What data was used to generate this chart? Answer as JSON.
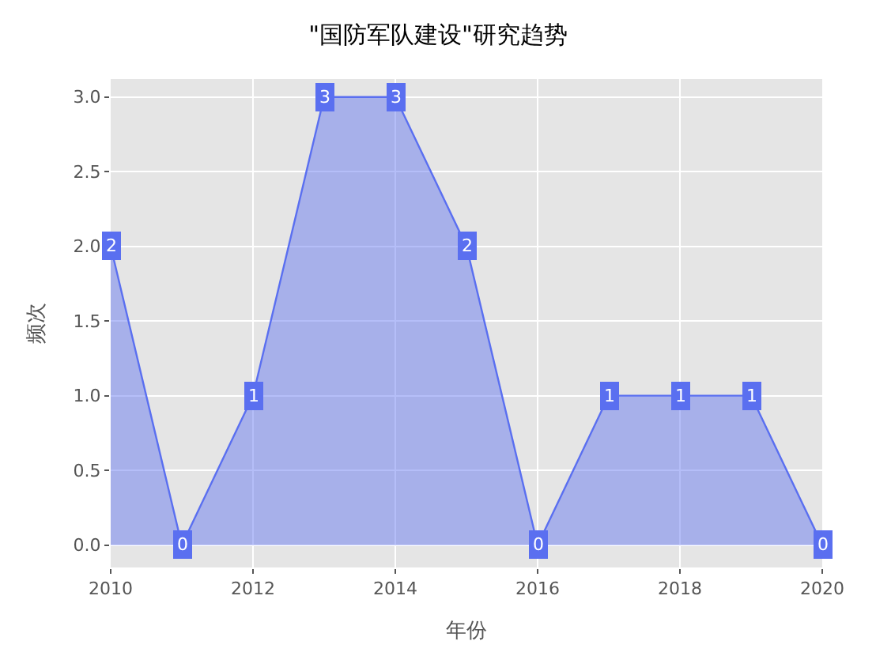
{
  "chart_data": {
    "type": "area",
    "title": "\"国防军队建设\"研究趋势",
    "xlabel": "年份",
    "ylabel": "频次",
    "x": [
      2010,
      2011,
      2012,
      2013,
      2014,
      2015,
      2016,
      2017,
      2018,
      2019,
      2020
    ],
    "series": [
      {
        "color": "#5a6ff0",
        "values": [
          2,
          0,
          1,
          3,
          3,
          2,
          0,
          1,
          1,
          1,
          0
        ]
      }
    ],
    "xlim": [
      2010,
      2020
    ],
    "xticks": [
      2010,
      2012,
      2014,
      2016,
      2018,
      2020
    ],
    "ylim": [
      -0.15,
      3.12
    ],
    "yticks": [
      {
        "value": 0,
        "label": "0.0"
      },
      {
        "value": 0.5,
        "label": "0.5"
      },
      {
        "value": 1,
        "label": "1.0"
      },
      {
        "value": 1.5,
        "label": "1.5"
      },
      {
        "value": 2,
        "label": "2.0"
      },
      {
        "value": 2.5,
        "label": "2.5"
      },
      {
        "value": 3,
        "label": "3.0"
      }
    ],
    "grid": true,
    "data_labels": true
  }
}
